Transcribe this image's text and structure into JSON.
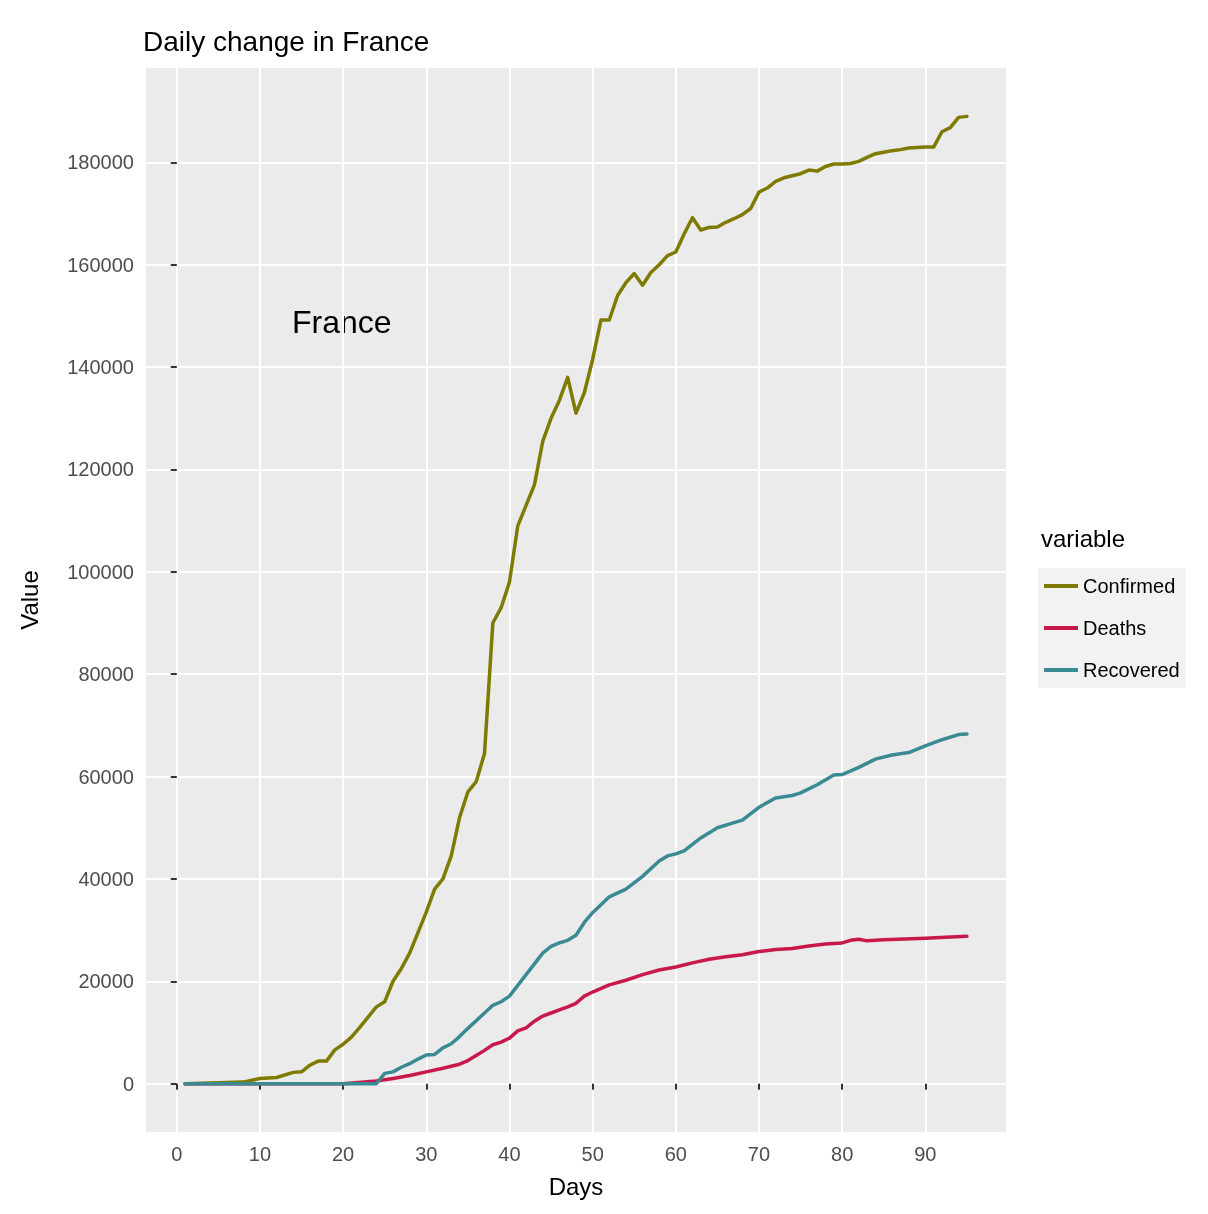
{
  "chart_data": {
    "type": "line",
    "title": "Daily change in France",
    "xlabel": "Days",
    "ylabel": "Value",
    "legend_title": "variable",
    "annotations": [
      "France"
    ],
    "xlim": [
      -3.7,
      99.7
    ],
    "xticks": [
      0,
      10,
      20,
      30,
      40,
      50,
      60,
      70,
      80,
      90
    ],
    "ylim": [
      -9450,
      198450
    ],
    "yticks": [
      0,
      20000,
      40000,
      60000,
      80000,
      100000,
      120000,
      140000,
      160000,
      180000
    ],
    "grid": true,
    "legend": "right",
    "marker": "none",
    "line_style": "solid",
    "series": [
      {
        "name": "Confirmed",
        "color": "#7f7a00",
        "x": [
          1,
          8,
          10,
          12,
          14,
          15,
          16,
          17,
          18,
          19,
          20,
          21,
          22,
          23,
          24,
          25,
          26,
          27,
          28,
          29,
          30,
          31,
          32,
          33,
          34,
          35,
          36,
          37,
          38,
          39,
          40,
          41,
          42,
          43,
          44,
          45,
          46,
          47,
          48,
          49,
          50,
          51,
          52,
          53,
          54,
          55,
          56,
          57,
          58,
          59,
          60,
          61,
          62,
          63,
          64,
          65,
          66,
          67,
          68,
          69,
          70,
          71,
          72,
          73,
          74,
          75,
          76,
          77,
          78,
          79,
          80,
          81,
          82,
          83,
          84,
          85,
          86,
          87,
          88,
          89,
          90,
          91,
          92,
          93,
          94,
          95
        ],
        "values": [
          0,
          300,
          1000,
          1200,
          2200,
          2300,
          3600,
          4400,
          4400,
          6600,
          7700,
          9100,
          11000,
          13000,
          15000,
          16000,
          20000,
          22500,
          25500,
          29500,
          33500,
          38000,
          40000,
          44500,
          52000,
          57000,
          59000,
          64500,
          90000,
          93000,
          98000,
          109000,
          113000,
          117000,
          125500,
          130000,
          133500,
          138000,
          131000,
          135000,
          141500,
          149200,
          149200,
          154000,
          156500,
          158300,
          156000,
          158500,
          160000,
          161800,
          162500,
          166000,
          169200,
          166800,
          167300,
          167400,
          168300,
          169000,
          169800,
          171000,
          174200,
          175000,
          176300,
          177000,
          177400,
          177800,
          178500,
          178300,
          179200,
          179700,
          179700,
          179800,
          180200,
          181000,
          181700,
          182000,
          182300,
          182500,
          182800,
          182900,
          183000,
          183000,
          186000,
          186800,
          188800,
          189000
        ]
      },
      {
        "name": "Deaths",
        "color": "#c8194a",
        "x": [
          1,
          20,
          24,
          26,
          28,
          30,
          32,
          34,
          35,
          36,
          37,
          38,
          39,
          40,
          41,
          42,
          43,
          44,
          45,
          46,
          47,
          48,
          49,
          50,
          52,
          54,
          56,
          58,
          60,
          62,
          64,
          66,
          68,
          70,
          72,
          74,
          76,
          78,
          80,
          81,
          82,
          83,
          85,
          90,
          95
        ],
        "values": [
          0,
          0,
          500,
          1000,
          1600,
          2300,
          3000,
          3800,
          4500,
          5500,
          6500,
          7600,
          8100,
          8900,
          10300,
          10900,
          12200,
          13200,
          13800,
          14400,
          15000,
          15700,
          17100,
          17900,
          19300,
          20200,
          21300,
          22200,
          22800,
          23600,
          24300,
          24800,
          25200,
          25800,
          26200,
          26400,
          26900,
          27300,
          27500,
          28000,
          28200,
          27900,
          28100,
          28400,
          28800
        ]
      },
      {
        "name": "Recovered",
        "color": "#3a8a94",
        "x": [
          1,
          24,
          25,
          26,
          27,
          28,
          29,
          30,
          31,
          32,
          33,
          34,
          35,
          36,
          37,
          38,
          39,
          40,
          41,
          42,
          43,
          44,
          45,
          46,
          47,
          48,
          49,
          50,
          52,
          54,
          56,
          58,
          59,
          60,
          61,
          63,
          65,
          67,
          68,
          70,
          72,
          74,
          75,
          77,
          79,
          80,
          82,
          84,
          86,
          88,
          90,
          92,
          94,
          95
        ],
        "values": [
          0,
          0,
          2000,
          2300,
          3200,
          3900,
          4800,
          5600,
          5700,
          7000,
          7800,
          9200,
          10800,
          12300,
          13800,
          15300,
          16000,
          17100,
          19200,
          21300,
          23400,
          25500,
          26800,
          27500,
          28000,
          29000,
          31500,
          33400,
          36500,
          38000,
          40500,
          43500,
          44500,
          44900,
          45500,
          48000,
          50000,
          51000,
          51500,
          54000,
          55800,
          56300,
          56800,
          58400,
          60300,
          60400,
          61800,
          63400,
          64200,
          64700,
          66000,
          67200,
          68200,
          68300
        ]
      }
    ]
  }
}
